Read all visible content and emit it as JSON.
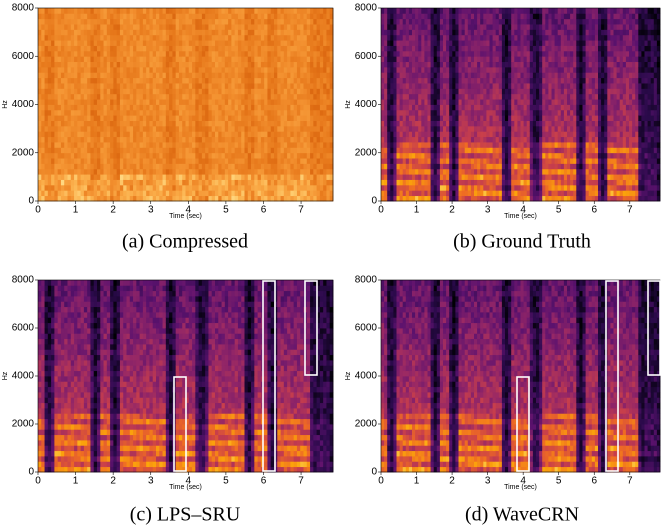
{
  "chart_data": [
    {
      "type": "spectrogram",
      "caption": "(a) Compressed",
      "cmap": "afmhot",
      "xlabel": "Time (sec)",
      "ylabel": "Hz",
      "xlim": [
        0,
        7.85
      ],
      "ylim": [
        0,
        8000
      ],
      "xticks": [
        0,
        1,
        2,
        3,
        4,
        5,
        6,
        7
      ],
      "yticks": [
        0,
        2000,
        4000,
        6000,
        8000
      ]
    },
    {
      "type": "spectrogram",
      "caption": "(b) Ground Truth",
      "cmap": "inferno",
      "xlabel": "Time (sec)",
      "ylabel": "Hz",
      "xlim": [
        0,
        7.85
      ],
      "ylim": [
        0,
        8000
      ],
      "xticks": [
        0,
        1,
        2,
        3,
        4,
        5,
        6,
        7
      ],
      "yticks": [
        0,
        2000,
        4000,
        6000,
        8000
      ]
    },
    {
      "type": "spectrogram",
      "caption": "(c) LPS–SRU",
      "cmap": "inferno",
      "xlabel": "Time (sec)",
      "ylabel": "Hz",
      "xlim": [
        0,
        7.85
      ],
      "ylim": [
        0,
        8000
      ],
      "xticks": [
        0,
        1,
        2,
        3,
        4,
        5,
        6,
        7
      ],
      "yticks": [
        0,
        2000,
        4000,
        6000,
        8000
      ]
    },
    {
      "type": "spectrogram",
      "caption": "(d) WaveCRN",
      "cmap": "inferno",
      "xlabel": "Time (sec)",
      "ylabel": "Hz",
      "xlim": [
        0,
        7.85
      ],
      "ylim": [
        0,
        8000
      ],
      "xticks": [
        0,
        1,
        2,
        3,
        4,
        5,
        6,
        7
      ],
      "yticks": [
        0,
        2000,
        4000,
        6000,
        8000
      ]
    }
  ]
}
